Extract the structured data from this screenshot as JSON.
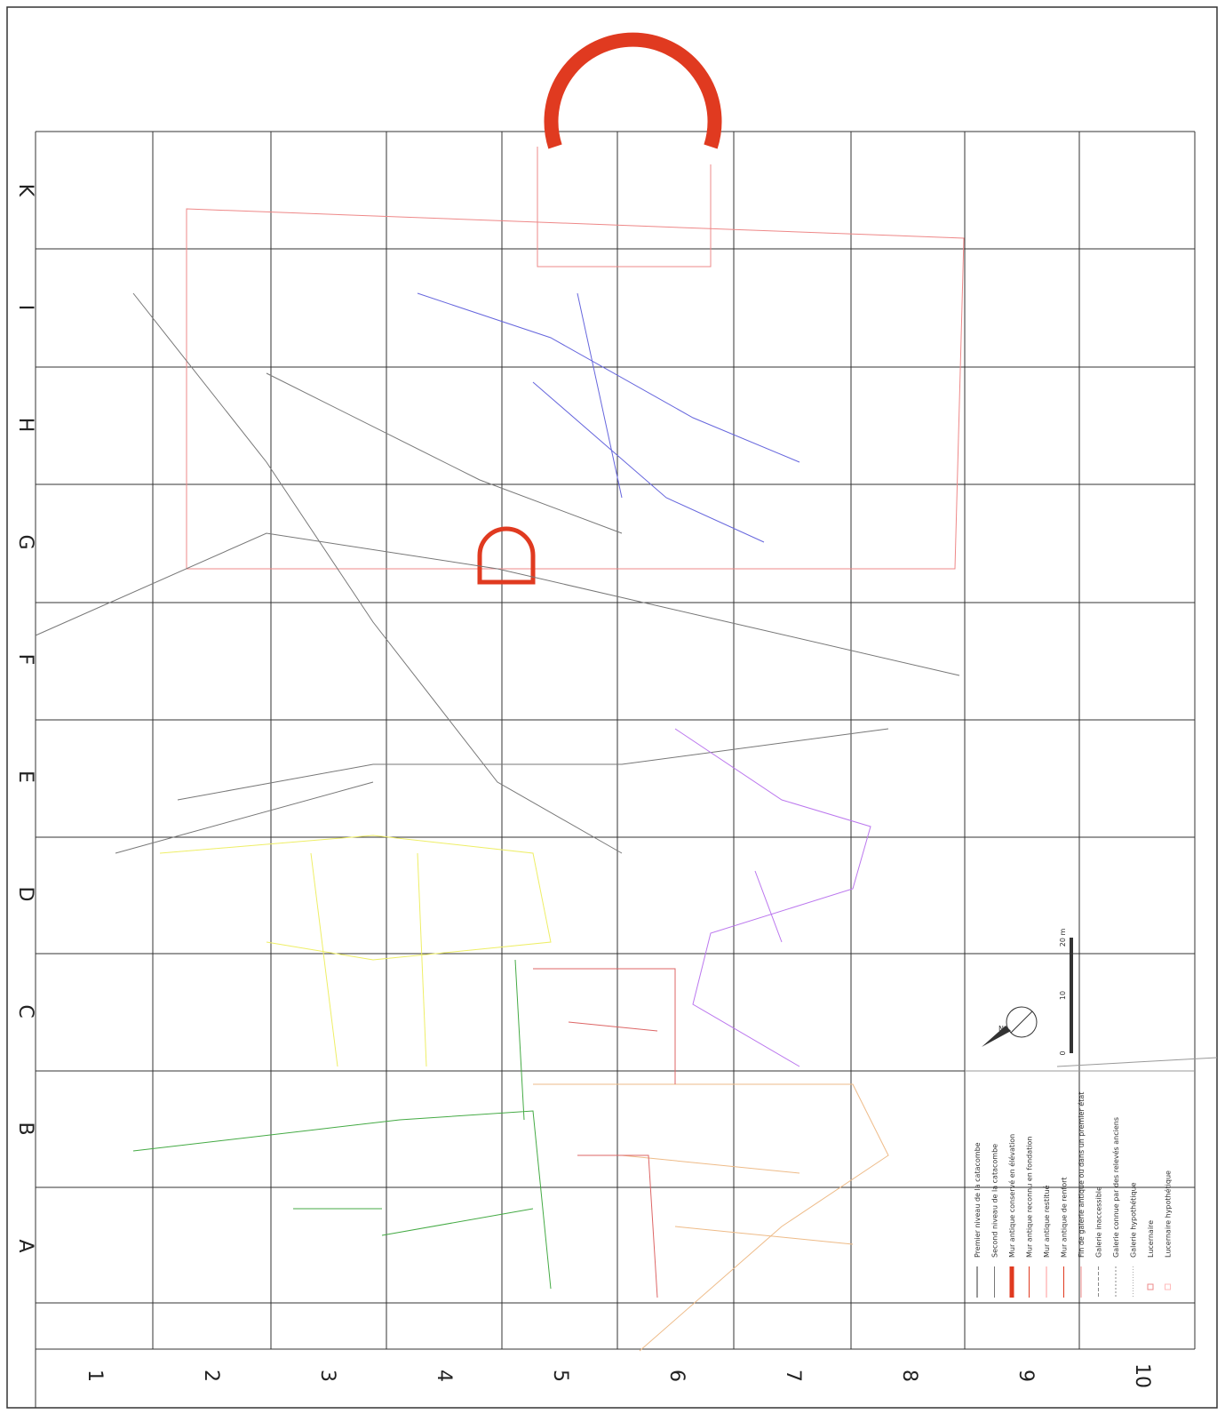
{
  "grid": {
    "rows": [
      "K",
      "I",
      "H",
      "G",
      "F",
      "E",
      "D",
      "C",
      "B",
      "A"
    ],
    "columns": [
      "1",
      "2",
      "3",
      "4",
      "5",
      "6",
      "7",
      "8",
      "9",
      "10"
    ]
  },
  "legend": [
    "Premier niveau de la catacombe",
    "Second niveau de la catacombe",
    "Mur antique conservé en élévation",
    "Mur antique reconnu en fondation",
    "Mur antique restitué",
    "Mur antique de renfort",
    "Fin de galerie antique ou dans un premier état",
    "Galerie inaccessible",
    "Galerie connue par des relevés anciens",
    "Galerie hypothétique",
    "Lucernaire",
    "Lucernaire hypothétique"
  ],
  "scale": {
    "labels": [
      "0",
      "10",
      "20 m"
    ]
  },
  "compass": "N"
}
